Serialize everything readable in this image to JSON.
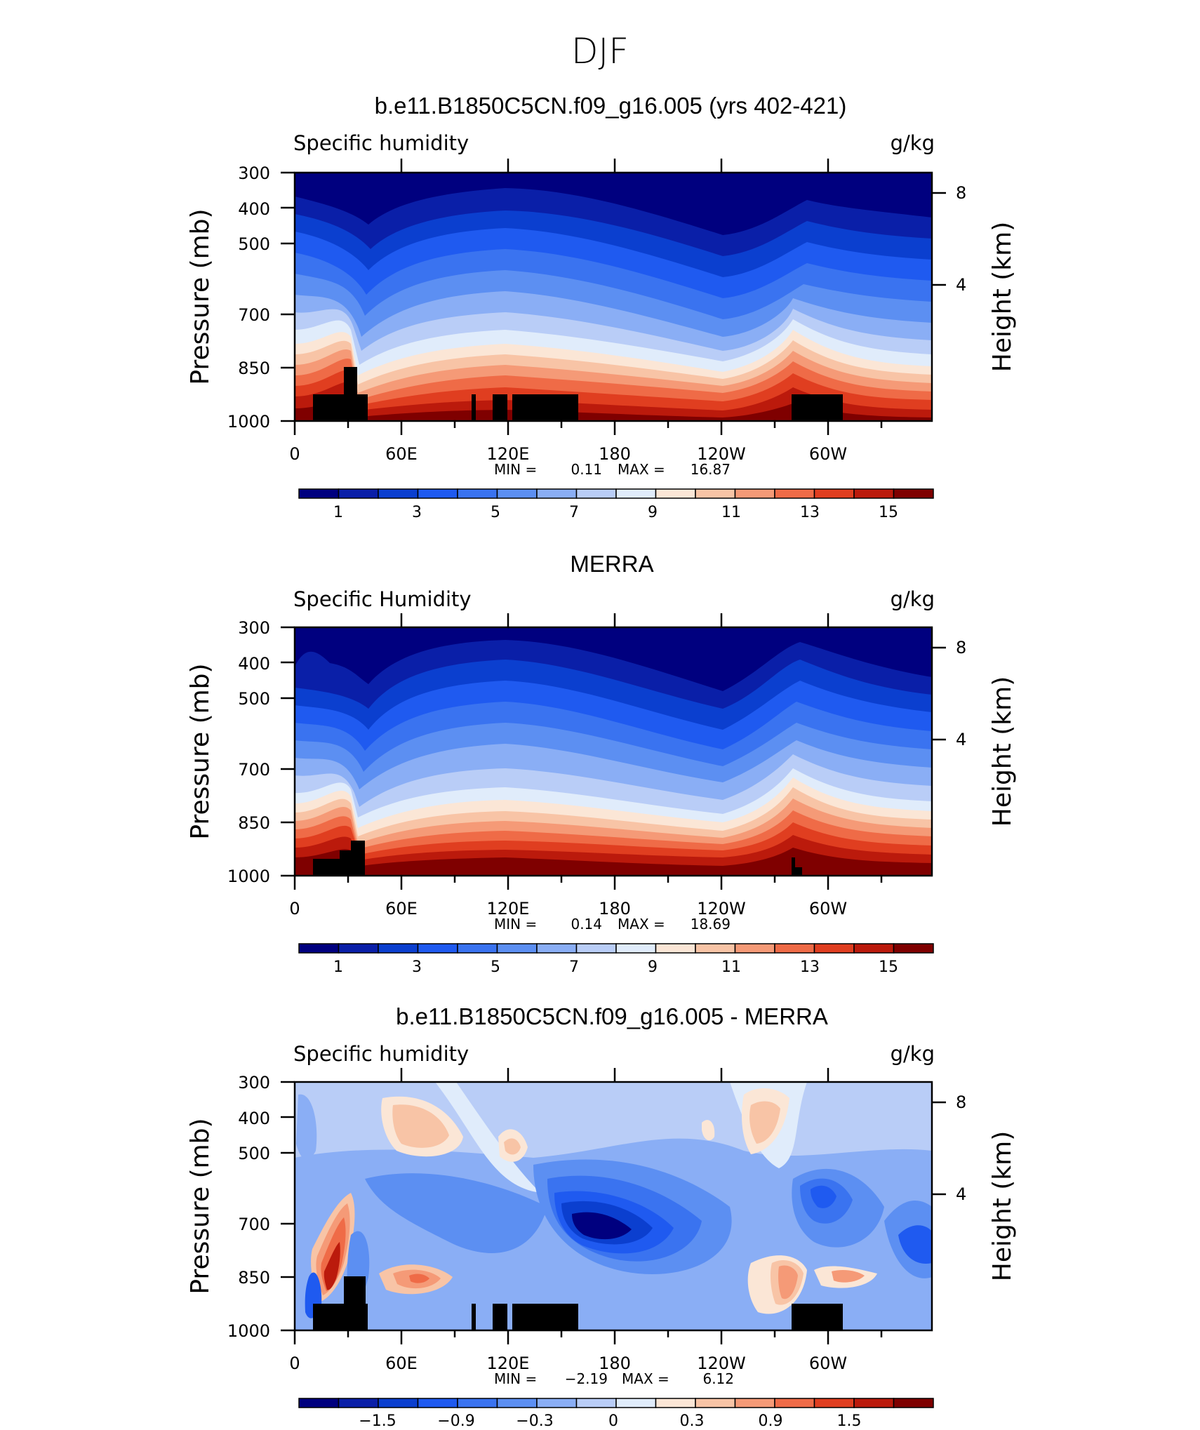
{
  "page_title": "DJF",
  "chart_data": [
    {
      "type": "heatmap",
      "title": "b.e11.B1850C5CN.f09_g16.005 (yrs 402-421)",
      "variable_label": "Specific humidity",
      "units": "g/kg",
      "ylabel": "Pressure (mb)",
      "ylabel_right": "Height (km)",
      "y_ticks": [
        "300",
        "400",
        "500",
        "700",
        "850",
        "1000"
      ],
      "y_ticks_right": [
        "8",
        "4"
      ],
      "x_ticks": [
        "0",
        "60E",
        "120E",
        "180",
        "120W",
        "60W"
      ],
      "min_label": "MIN =",
      "min_value": "0.11",
      "max_label": "MAX =",
      "max_value": "16.87",
      "colorbar_labels": [
        "1",
        "3",
        "5",
        "7",
        "9",
        "11",
        "13",
        "15"
      ]
    },
    {
      "type": "heatmap",
      "title": "MERRA",
      "variable_label": "Specific Humidity",
      "units": "g/kg",
      "ylabel": "Pressure (mb)",
      "ylabel_right": "Height (km)",
      "y_ticks": [
        "300",
        "400",
        "500",
        "700",
        "850",
        "1000"
      ],
      "y_ticks_right": [
        "8",
        "4"
      ],
      "x_ticks": [
        "0",
        "60E",
        "120E",
        "180",
        "120W",
        "60W"
      ],
      "min_label": "MIN =",
      "min_value": "0.14",
      "max_label": "MAX =",
      "max_value": "18.69",
      "colorbar_labels": [
        "1",
        "3",
        "5",
        "7",
        "9",
        "11",
        "13",
        "15"
      ]
    },
    {
      "type": "heatmap",
      "title": "b.e11.B1850C5CN.f09_g16.005 - MERRA",
      "variable_label": "Specific humidity",
      "units": "g/kg",
      "ylabel": "Pressure (mb)",
      "ylabel_right": "Height (km)",
      "y_ticks": [
        "300",
        "400",
        "500",
        "700",
        "850",
        "1000"
      ],
      "y_ticks_right": [
        "8",
        "4"
      ],
      "x_ticks": [
        "0",
        "60E",
        "120E",
        "180",
        "120W",
        "60W"
      ],
      "min_label": "MIN =",
      "min_value": "−2.19",
      "max_label": "MAX =",
      "max_value": "6.12",
      "colorbar_labels": [
        "−1.5",
        "−0.9",
        "−0.3",
        "0",
        "0.3",
        "0.9",
        "1.5"
      ]
    }
  ],
  "colors": {
    "colormap": [
      "#00007f",
      "#0a1fa8",
      "#0b3fcf",
      "#1f5af0",
      "#3a73f0",
      "#5c8ff2",
      "#8aaef5",
      "#b9cdf7",
      "#e0ecfb",
      "#fbe6d6",
      "#f8c4a6",
      "#f59a77",
      "#ef6b47",
      "#e03e20",
      "#bb1a0c",
      "#7f0000"
    ]
  }
}
